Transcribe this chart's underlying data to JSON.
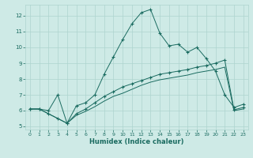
{
  "xlabel": "Humidex (Indice chaleur)",
  "bg_color": "#ceeae6",
  "grid_color": "#add4cf",
  "line_color": "#1a6b60",
  "xlim": [
    -0.5,
    23.5
  ],
  "ylim": [
    4.8,
    12.7
  ],
  "xticks": [
    0,
    1,
    2,
    3,
    4,
    5,
    6,
    7,
    8,
    9,
    10,
    11,
    12,
    13,
    14,
    15,
    16,
    17,
    18,
    19,
    20,
    21,
    22,
    23
  ],
  "yticks": [
    5,
    6,
    7,
    8,
    9,
    10,
    11,
    12
  ],
  "line1_x": [
    0,
    1,
    2,
    3,
    4,
    5,
    6,
    7,
    8,
    9,
    10,
    11,
    12,
    13,
    14,
    15,
    16,
    17,
    18,
    19,
    20,
    21,
    22,
    23
  ],
  "line1_y": [
    6.1,
    6.1,
    6.0,
    7.0,
    5.2,
    6.3,
    6.5,
    7.0,
    8.3,
    9.4,
    10.5,
    11.5,
    12.2,
    12.4,
    10.9,
    10.1,
    10.2,
    9.7,
    10.0,
    9.3,
    8.5,
    7.0,
    6.2,
    6.4
  ],
  "line2_x": [
    0,
    1,
    2,
    3,
    4,
    5,
    6,
    7,
    8,
    9,
    10,
    11,
    12,
    13,
    14,
    15,
    16,
    17,
    18,
    19,
    20,
    21,
    22,
    23
  ],
  "line2_y": [
    6.1,
    6.1,
    5.8,
    5.5,
    5.2,
    5.8,
    6.1,
    6.5,
    6.9,
    7.2,
    7.5,
    7.7,
    7.9,
    8.1,
    8.3,
    8.4,
    8.5,
    8.6,
    8.75,
    8.85,
    9.0,
    9.2,
    6.05,
    6.2
  ],
  "line3_x": [
    0,
    1,
    2,
    3,
    4,
    5,
    6,
    7,
    8,
    9,
    10,
    11,
    12,
    13,
    14,
    15,
    16,
    17,
    18,
    19,
    20,
    21,
    22,
    23
  ],
  "line3_y": [
    6.1,
    6.1,
    5.8,
    5.5,
    5.2,
    5.7,
    5.95,
    6.25,
    6.6,
    6.9,
    7.1,
    7.35,
    7.6,
    7.8,
    7.95,
    8.05,
    8.15,
    8.25,
    8.4,
    8.5,
    8.6,
    8.75,
    6.0,
    6.1
  ]
}
